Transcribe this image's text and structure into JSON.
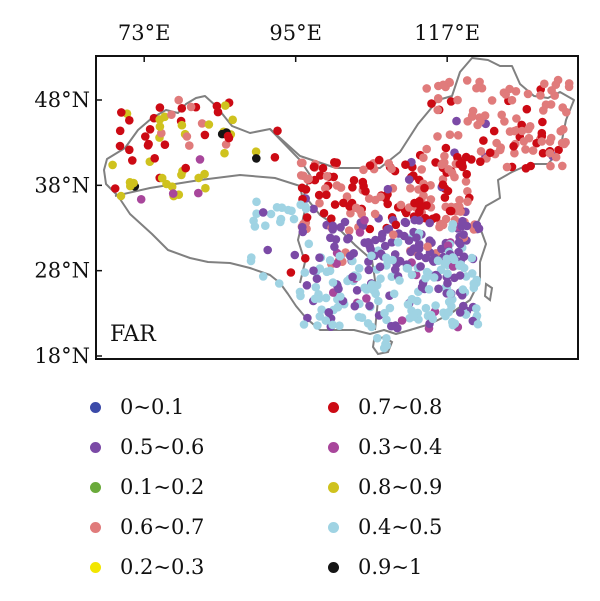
{
  "panel_label": "FAR",
  "x_ticks": [
    {
      "label": "73°E",
      "lon": 73
    },
    {
      "label": "95°E",
      "lon": 95
    },
    {
      "label": "117°E",
      "lon": 117
    }
  ],
  "y_ticks": [
    {
      "label": "48°N",
      "lat": 48
    },
    {
      "label": "38°N",
      "lat": 38
    },
    {
      "label": "28°N",
      "lat": 28
    },
    {
      "label": "18°N",
      "lat": 18
    }
  ],
  "legend": [
    {
      "label": "0~0.1",
      "color": "#3b4aa8"
    },
    {
      "label": "0.5~0.6",
      "color": "#7b4aa6"
    },
    {
      "label": "0.1~0.2",
      "color": "#6aaa3a"
    },
    {
      "label": "0.6~0.7",
      "color": "#e07b7b"
    },
    {
      "label": "0.2~0.3",
      "color": "#f2e600"
    },
    {
      "label": "0.7~0.8",
      "color": "#cc0a14"
    },
    {
      "label": "0.3~0.4",
      "color": "#a8469b"
    },
    {
      "label": "0.8~0.9",
      "color": "#cfc21e"
    },
    {
      "label": "0.4~0.5",
      "color": "#9fd3e3"
    },
    {
      "label": "0.9~1",
      "color": "#151515"
    }
  ],
  "frame_color": "#111111",
  "border_color": "#808080"
}
